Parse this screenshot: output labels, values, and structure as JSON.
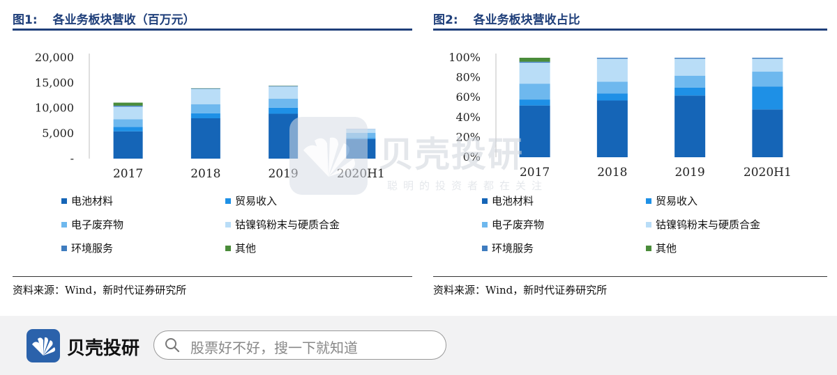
{
  "figure1": {
    "num": "图1:",
    "title": "各业务板块营收（百万元）",
    "source": "资料来源：Wind，新时代证券研究所"
  },
  "figure2": {
    "num": "图2:",
    "title": "各业务板块营收占比",
    "source": "资料来源：Wind，新时代证券研究所"
  },
  "legend": [
    {
      "label": "电池材料",
      "color": "#1565b7"
    },
    {
      "label": "贸易收入",
      "color": "#1e90e6"
    },
    {
      "label": "电子废弃物",
      "color": "#6eb8ee"
    },
    {
      "label": "钴镍钨粉末与硬质合金",
      "color": "#b9ddf7"
    },
    {
      "label": "环境服务",
      "color": "#3f7cbf"
    },
    {
      "label": "其他",
      "color": "#4a8c3a"
    }
  ],
  "chart_data": [
    {
      "type": "bar",
      "stacked": true,
      "categories": [
        "2017",
        "2018",
        "2019",
        "2020H1"
      ],
      "ylim": [
        0,
        20000
      ],
      "yticks": [
        0,
        5000,
        10000,
        15000,
        20000
      ],
      "ytick_labels": [
        "-",
        "5,000",
        "10,000",
        "15,000",
        "20,000"
      ],
      "series": [
        {
          "name": "电池材料",
          "values": [
            5400,
            8000,
            8900,
            3900
          ]
        },
        {
          "name": "贸易收入",
          "values": [
            900,
            1000,
            1200,
            200
          ]
        },
        {
          "name": "电子废弃物",
          "values": [
            1500,
            1800,
            1800,
            1000
          ]
        },
        {
          "name": "钴镍钨粉末与硬质合金",
          "values": [
            2500,
            3000,
            2400,
            700
          ]
        },
        {
          "name": "环境服务",
          "values": [
            200,
            100,
            100,
            50
          ]
        },
        {
          "name": "其他",
          "values": [
            600,
            50,
            50,
            0
          ]
        }
      ]
    },
    {
      "type": "bar",
      "stacked": true,
      "categories": [
        "2017",
        "2018",
        "2019",
        "2020H1"
      ],
      "ylim": [
        0,
        100
      ],
      "yticks": [
        0,
        20,
        40,
        60,
        80,
        100
      ],
      "ytick_labels": [
        "0%",
        "20%",
        "40%",
        "60%",
        "80%",
        "100%"
      ],
      "series": [
        {
          "name": "电池材料",
          "values": [
            52,
            57,
            62,
            48
          ]
        },
        {
          "name": "贸易收入",
          "values": [
            6,
            7,
            8,
            23
          ]
        },
        {
          "name": "电子废弃物",
          "values": [
            16,
            12,
            12,
            15
          ]
        },
        {
          "name": "钴镍钨粉末与硬质合金",
          "values": [
            21,
            23,
            17,
            13
          ]
        },
        {
          "name": "环境服务",
          "values": [
            1,
            1,
            1,
            1
          ]
        },
        {
          "name": "其他",
          "values": [
            4,
            0,
            0,
            0
          ]
        }
      ]
    }
  ],
  "watermark": {
    "text": "贝壳投研",
    "sub": "聪明的投资者都在关注"
  },
  "bottom_bar": {
    "brand": "贝壳投研",
    "search_placeholder": "股票好不好，搜一下就知道"
  }
}
